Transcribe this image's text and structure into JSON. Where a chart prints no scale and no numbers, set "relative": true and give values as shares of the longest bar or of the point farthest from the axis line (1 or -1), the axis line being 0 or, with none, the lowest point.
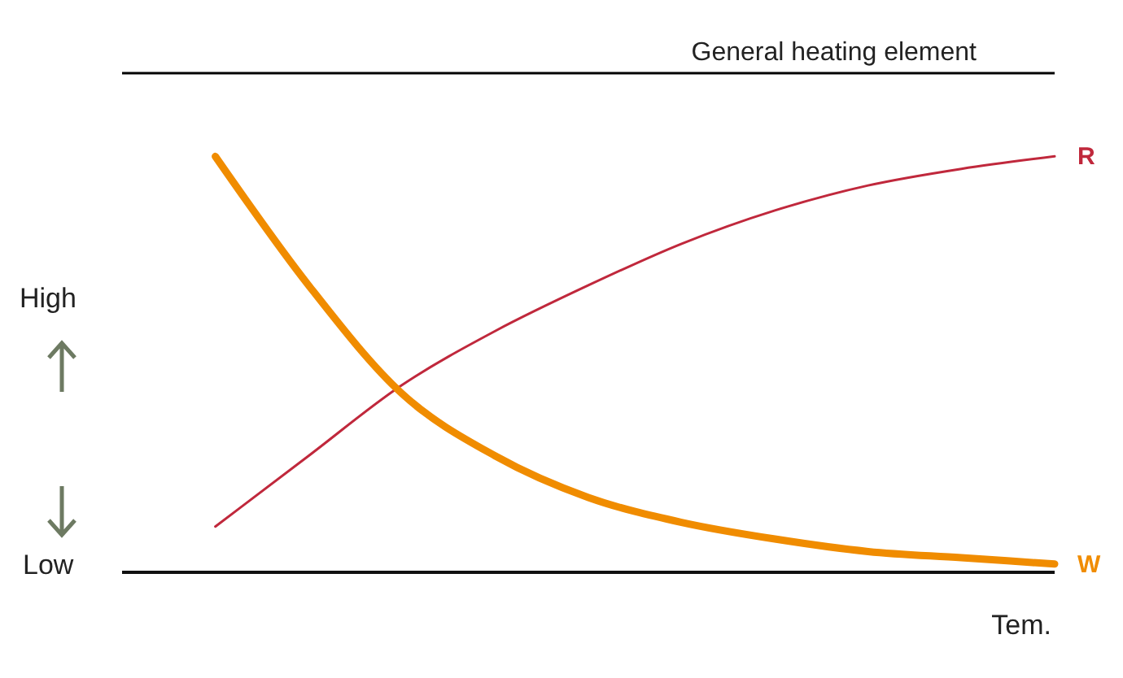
{
  "chart_data": {
    "type": "line",
    "relative": true,
    "xlabel": "Tem.",
    "categories": [
      null,
      null,
      null,
      null,
      null,
      null,
      null,
      null,
      null,
      null,
      null
    ],
    "series": [
      {
        "name": "R",
        "color": "#c0283c",
        "values": [
          null,
          0.11,
          0.28,
          0.45,
          0.58,
          0.69,
          0.79,
          0.87,
          0.93,
          0.97,
          1.0
        ]
      },
      {
        "name": "W",
        "color": "#f08c00",
        "values": [
          null,
          1.0,
          0.69,
          0.43,
          0.28,
          0.18,
          0.12,
          0.08,
          0.05,
          0.035,
          0.02
        ]
      }
    ],
    "ref_lines": [
      {
        "axis": "y",
        "value": 1.2,
        "label": "General heating element",
        "color": "#000000"
      }
    ],
    "annotations": [
      "High",
      "Low"
    ],
    "grid": false,
    "legend": false,
    "marker": "none",
    "line_style": "solid"
  }
}
